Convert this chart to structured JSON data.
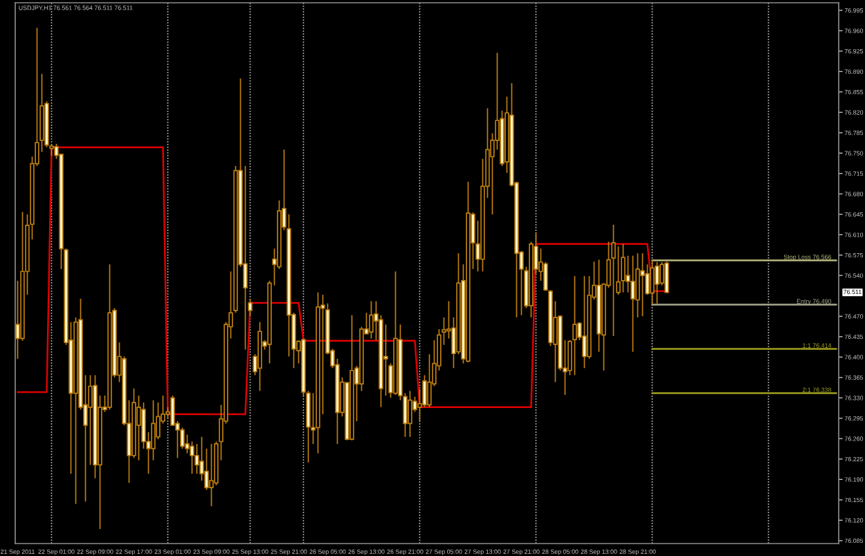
{
  "chart_data": {
    "type": "candlestick",
    "title": "USDJPY,H1 76.561 76.564 76.511 76.511",
    "categories": [
      "21 Sep 2011",
      null,
      null,
      null,
      null,
      null,
      null,
      null,
      "22 Sep 01:00",
      null,
      null,
      null,
      null,
      null,
      null,
      null,
      "22 Sep 09:00",
      null,
      null,
      null,
      null,
      null,
      null,
      null,
      "22 Sep 17:00",
      null,
      null,
      null,
      null,
      null,
      null,
      null,
      "23 Sep 01:00",
      null,
      null,
      null,
      null,
      null,
      null,
      null,
      "23 Sep 09:00",
      null,
      null,
      null,
      null,
      null,
      null,
      null,
      "25 Sep 13:00",
      null,
      null,
      null,
      null,
      null,
      null,
      null,
      "25 Sep 21:00",
      null,
      null,
      null,
      null,
      null,
      null,
      null,
      "26 Sep 05:00",
      null,
      null,
      null,
      null,
      null,
      null,
      null,
      "26 Sep 13:00",
      null,
      null,
      null,
      null,
      null,
      null,
      null,
      "26 Sep 21:00",
      null,
      null,
      null,
      null,
      null,
      null,
      null,
      "27 Sep 05:00",
      null,
      null,
      null,
      null,
      null,
      null,
      null,
      "27 Sep 13:00",
      null,
      null,
      null,
      null,
      null,
      null,
      null,
      "27 Sep 21:00",
      null,
      null,
      null,
      null,
      null,
      null,
      null,
      "28 Sep 05:00",
      null,
      null,
      null,
      null,
      null,
      null,
      null,
      "28 Sep 13:00",
      null,
      null,
      null,
      null,
      null,
      null,
      null,
      "28 Sep 21:00",
      null,
      null,
      null,
      null,
      null,
      null,
      null,
      null,
      null,
      null,
      null,
      null,
      null,
      null,
      null,
      null,
      null,
      null,
      null,
      null,
      null,
      null,
      null,
      null,
      null,
      null,
      null,
      null,
      null,
      null,
      null,
      null,
      null,
      null,
      null,
      null,
      null,
      null,
      null,
      null,
      null
    ],
    "ohlc": [
      [
        76.456,
        76.531,
        76.397,
        76.432
      ],
      [
        76.432,
        76.649,
        76.428,
        76.547
      ],
      [
        76.547,
        76.645,
        76.507,
        76.626
      ],
      [
        76.628,
        76.744,
        76.602,
        76.732
      ],
      [
        76.732,
        76.965,
        76.728,
        76.768
      ],
      [
        76.772,
        76.886,
        76.752,
        76.831
      ],
      [
        76.835,
        76.839,
        76.76,
        76.764
      ],
      [
        76.758,
        76.766,
        76.745,
        76.762
      ],
      [
        76.761,
        76.766,
        76.74,
        76.746
      ],
      [
        76.748,
        76.748,
        76.551,
        76.586
      ],
      [
        76.584,
        76.586,
        76.421,
        76.425
      ],
      [
        76.429,
        76.46,
        76.2,
        76.338
      ],
      [
        76.338,
        76.468,
        76.148,
        76.46
      ],
      [
        76.464,
        76.5,
        76.31,
        76.314
      ],
      [
        76.318,
        76.369,
        76.152,
        76.283
      ],
      [
        76.314,
        76.369,
        76.215,
        76.35
      ],
      [
        76.351,
        76.369,
        76.192,
        76.215
      ],
      [
        76.215,
        76.334,
        76.105,
        76.314
      ],
      [
        76.314,
        76.334,
        76.306,
        76.31
      ],
      [
        76.314,
        76.559,
        76.31,
        76.476
      ],
      [
        76.48,
        76.484,
        76.365,
        76.369
      ],
      [
        76.369,
        76.425,
        76.357,
        76.401
      ],
      [
        76.397,
        76.401,
        76.283,
        76.286
      ],
      [
        76.286,
        76.326,
        76.184,
        76.231
      ],
      [
        76.231,
        76.346,
        76.227,
        76.322
      ],
      [
        76.283,
        76.334,
        76.223,
        76.314
      ],
      [
        76.31,
        76.322,
        76.243,
        76.255
      ],
      [
        76.255,
        76.271,
        76.2,
        76.243
      ],
      [
        76.243,
        76.326,
        76.223,
        76.286
      ],
      [
        76.263,
        76.322,
        76.259,
        76.298
      ],
      [
        76.29,
        76.334,
        76.286,
        76.302
      ],
      [
        76.302,
        76.314,
        76.294,
        76.306
      ],
      [
        76.33,
        76.334,
        76.283,
        76.283
      ],
      [
        76.286,
        76.29,
        76.227,
        76.275
      ],
      [
        76.275,
        76.279,
        76.243,
        76.247
      ],
      [
        76.251,
        76.267,
        76.235,
        76.243
      ],
      [
        76.247,
        76.255,
        76.2,
        76.231
      ],
      [
        76.231,
        76.251,
        76.2,
        76.215
      ],
      [
        76.221,
        76.263,
        76.188,
        76.2
      ],
      [
        76.204,
        76.243,
        76.172,
        76.176
      ],
      [
        76.176,
        76.251,
        76.144,
        76.188
      ],
      [
        76.184,
        76.255,
        76.18,
        76.251
      ],
      [
        76.255,
        76.318,
        76.223,
        76.294
      ],
      [
        76.29,
        76.46,
        76.286,
        76.456
      ],
      [
        76.452,
        76.547,
        76.432,
        76.476
      ],
      [
        76.48,
        76.728,
        76.476,
        76.72
      ],
      [
        76.72,
        76.878,
        76.555,
        76.559
      ],
      [
        76.56,
        76.728,
        76.413,
        76.519
      ],
      [
        76.493,
        76.5,
        76.47,
        76.48
      ],
      [
        76.401,
        76.405,
        76.369,
        76.375
      ],
      [
        76.381,
        76.46,
        76.342,
        76.444
      ],
      [
        76.426,
        76.429,
        76.413,
        76.419
      ],
      [
        76.422,
        76.531,
        76.389,
        76.527
      ],
      [
        76.568,
        76.586,
        76.523,
        76.559
      ],
      [
        76.555,
        76.669,
        76.551,
        76.651
      ],
      [
        76.655,
        76.756,
        76.618,
        76.623
      ],
      [
        76.62,
        76.645,
        76.401,
        76.472
      ],
      [
        76.473,
        76.476,
        76.381,
        76.414
      ],
      [
        76.411,
        76.429,
        76.389,
        76.427
      ],
      [
        76.43,
        76.432,
        76.334,
        76.34
      ],
      [
        76.338,
        76.342,
        76.219,
        76.28
      ],
      [
        76.279,
        76.338,
        76.251,
        76.275
      ],
      [
        76.279,
        76.511,
        76.235,
        76.486
      ],
      [
        76.489,
        76.507,
        76.302,
        76.484
      ],
      [
        76.481,
        76.492,
        76.405,
        76.407
      ],
      [
        76.411,
        76.414,
        76.381,
        76.385
      ],
      [
        76.387,
        76.397,
        76.251,
        76.305
      ],
      [
        76.305,
        76.365,
        76.298,
        76.357
      ],
      [
        76.356,
        76.357,
        76.257,
        76.259
      ],
      [
        76.259,
        76.472,
        76.257,
        76.377
      ],
      [
        76.381,
        76.385,
        76.29,
        76.354
      ],
      [
        76.354,
        76.452,
        76.342,
        76.448
      ],
      [
        76.448,
        76.476,
        76.44,
        76.44
      ],
      [
        76.443,
        76.496,
        76.432,
        76.472
      ],
      [
        76.474,
        76.496,
        76.429,
        76.462
      ],
      [
        76.464,
        76.472,
        76.314,
        76.346
      ],
      [
        76.401,
        76.456,
        76.334,
        76.397
      ],
      [
        76.385,
        76.389,
        76.33,
        76.339
      ],
      [
        76.338,
        76.547,
        76.335,
        76.432
      ],
      [
        76.43,
        76.456,
        76.326,
        76.334
      ],
      [
        76.332,
        76.338,
        76.263,
        76.286
      ],
      [
        76.286,
        76.342,
        76.263,
        76.326
      ],
      [
        76.324,
        76.332,
        76.306,
        76.31
      ],
      [
        76.314,
        76.345,
        76.29,
        76.32
      ],
      [
        76.359,
        76.369,
        76.314,
        76.318
      ],
      [
        76.318,
        76.405,
        76.314,
        76.357
      ],
      [
        76.354,
        76.429,
        76.35,
        76.389
      ],
      [
        76.385,
        76.448,
        76.377,
        76.438
      ],
      [
        76.443,
        76.468,
        76.421,
        76.447
      ],
      [
        76.445,
        76.496,
        76.432,
        76.448
      ],
      [
        76.45,
        76.468,
        76.381,
        76.406
      ],
      [
        76.409,
        76.578,
        76.405,
        76.527
      ],
      [
        76.531,
        76.559,
        76.389,
        76.397
      ],
      [
        76.393,
        76.701,
        76.391,
        76.647
      ],
      [
        76.645,
        76.648,
        76.551,
        76.596
      ],
      [
        76.594,
        76.634,
        76.547,
        76.568
      ],
      [
        76.568,
        76.74,
        76.547,
        76.693
      ],
      [
        76.693,
        76.827,
        76.673,
        76.756
      ],
      [
        76.744,
        76.784,
        76.645,
        76.772
      ],
      [
        76.772,
        76.922,
        76.756,
        76.806
      ],
      [
        76.809,
        76.823,
        76.728,
        76.732
      ],
      [
        76.735,
        76.847,
        76.716,
        76.819
      ],
      [
        76.815,
        76.87,
        76.693,
        76.695
      ],
      [
        76.699,
        76.701,
        76.468,
        76.578
      ],
      [
        76.58,
        76.582,
        76.472,
        76.551
      ],
      [
        76.548,
        76.555,
        76.484,
        76.488
      ],
      [
        76.488,
        76.598,
        76.468,
        76.594
      ],
      [
        76.59,
        76.614,
        76.543,
        76.551
      ],
      [
        76.547,
        76.586,
        76.531,
        76.563
      ],
      [
        76.56,
        76.563,
        76.514,
        76.515
      ],
      [
        76.513,
        76.515,
        76.419,
        76.425
      ],
      [
        76.422,
        76.496,
        76.357,
        76.468
      ],
      [
        76.47,
        76.472,
        76.377,
        76.381
      ],
      [
        76.381,
        76.429,
        76.335,
        76.375
      ],
      [
        76.377,
        76.429,
        76.369,
        76.427
      ],
      [
        76.43,
        76.539,
        76.369,
        76.456
      ],
      [
        76.458,
        76.46,
        76.429,
        76.434
      ],
      [
        76.436,
        76.539,
        76.381,
        76.401
      ],
      [
        76.401,
        76.539,
        76.397,
        76.506
      ],
      [
        76.503,
        76.564,
        76.499,
        76.523
      ],
      [
        76.523,
        76.567,
        76.409,
        76.44
      ],
      [
        76.438,
        76.527,
        76.377,
        76.525
      ],
      [
        76.523,
        76.598,
        76.519,
        76.567
      ],
      [
        76.57,
        76.627,
        76.436,
        76.596
      ],
      [
        76.511,
        76.59,
        76.507,
        76.529
      ],
      [
        76.531,
        76.594,
        76.511,
        76.571
      ],
      [
        76.54,
        76.574,
        76.511,
        76.53
      ],
      [
        76.53,
        76.574,
        76.409,
        76.5
      ],
      [
        76.498,
        76.578,
        76.468,
        76.551
      ],
      [
        76.548,
        76.578,
        76.47,
        76.54
      ],
      [
        76.543,
        76.559,
        76.507,
        76.509
      ],
      [
        76.51,
        76.567,
        76.49,
        76.553
      ],
      [
        76.556,
        76.563,
        76.492,
        76.525
      ],
      [
        76.527,
        76.563,
        76.523,
        76.559
      ],
      [
        76.561,
        76.564,
        76.511,
        76.511
      ],
      null,
      null,
      null,
      null,
      null,
      null,
      null,
      null,
      null,
      null,
      null,
      null,
      null,
      null,
      null,
      null,
      null,
      null,
      null,
      null,
      null,
      null,
      null,
      null,
      null,
      null,
      null,
      null,
      null,
      null,
      null,
      null,
      null,
      null,
      null
    ],
    "color": "#c08010",
    "colors": [
      "#fff2c4",
      "#000000",
      "#000000",
      "#000000",
      "#000000",
      "#000000",
      "#fff2c4",
      "#000000",
      "#fff2c4",
      "#fff2c4",
      "#fff2c4",
      "#fff2c4",
      "#000000",
      "#fff2c4",
      "#fff2c4",
      "#000000",
      "#fff2c4",
      "#000000",
      "#fff2c4",
      "#000000",
      "#fff2c4",
      "#000000",
      "#fff2c4",
      "#fff2c4",
      "#000000",
      "#000000",
      "#fff2c4",
      "#fff2c4",
      "#000000",
      "#000000",
      "#000000",
      "#000000",
      "#fff2c4",
      "#fff2c4",
      "#fff2c4",
      "#fff2c4",
      "#fff2c4",
      "#fff2c4",
      "#fff2c4",
      "#fff2c4",
      "#000000",
      "#000000",
      "#000000",
      "#000000",
      "#000000",
      "#000000",
      "#fff2c4",
      "#fff2c4",
      "#fff2c4",
      "#fff2c4",
      "#000000",
      "#fff2c4",
      "#000000",
      "#fff2c4",
      "#000000",
      "#fff2c4",
      "#fff2c4",
      "#fff2c4",
      "#000000",
      "#fff2c4",
      "#fff2c4",
      "#fff2c4",
      "#000000",
      "#fff2c4",
      "#fff2c4",
      "#fff2c4",
      "#fff2c4",
      "#000000",
      "#fff2c4",
      "#000000",
      "#fff2c4",
      "#000000",
      "#fff2c4",
      "#000000",
      "#fff2c4",
      "#fff2c4",
      "#fff2c4",
      "#fff2c4",
      "#000000",
      "#fff2c4",
      "#fff2c4",
      "#000000",
      "#fff2c4",
      "#000000",
      "#fff2c4",
      "#000000",
      "#000000",
      "#000000",
      "#000000",
      "#000000",
      "#fff2c4",
      "#000000",
      "#fff2c4",
      "#000000",
      "#fff2c4",
      "#fff2c4",
      "#000000",
      "#000000",
      "#000000",
      "#000000",
      "#fff2c4",
      "#000000",
      "#fff2c4",
      "#fff2c4",
      "#fff2c4",
      "#fff2c4",
      "#000000",
      "#fff2c4",
      "#000000",
      "#fff2c4",
      "#fff2c4",
      "#000000",
      "#fff2c4",
      "#fff2c4",
      "#000000",
      "#000000",
      "#fff2c4",
      "#fff2c4",
      "#000000",
      "#000000",
      "#fff2c4",
      "#000000",
      "#000000",
      "#000000",
      "#000000",
      "#000000",
      "#fff2c4",
      "#fff2c4",
      "#000000",
      "#fff2c4",
      "#fff2c4",
      "#000000",
      "#fff2c4",
      "#000000",
      "#fff2c4",
      null,
      null,
      null,
      null,
      null,
      null,
      null,
      null,
      null,
      null,
      null,
      null,
      null,
      null,
      null,
      null,
      null,
      null,
      null,
      null,
      null,
      null,
      null,
      null,
      null,
      null,
      null,
      null,
      null,
      null,
      null,
      null,
      null,
      null,
      null
    ],
    "series": [
      {
        "type": "line",
        "color": "#e00000",
        "values": [
          76.34,
          76.34,
          76.34,
          76.34,
          76.34,
          76.34,
          76.34,
          76.76,
          76.76,
          76.76,
          76.76,
          76.76,
          76.76,
          76.76,
          76.76,
          76.76,
          76.76,
          76.76,
          76.76,
          76.76,
          76.76,
          76.76,
          76.76,
          76.76,
          76.76,
          76.76,
          76.76,
          76.76,
          76.76,
          76.76,
          76.76,
          76.302,
          76.302,
          76.302,
          76.302,
          76.302,
          76.302,
          76.302,
          76.302,
          76.302,
          76.302,
          76.302,
          76.302,
          76.302,
          76.302,
          76.302,
          76.302,
          76.302,
          76.493,
          76.493,
          76.493,
          76.493,
          76.493,
          76.493,
          76.493,
          76.493,
          76.493,
          76.493,
          76.493,
          76.428,
          76.428,
          76.428,
          76.428,
          76.428,
          76.428,
          76.428,
          76.428,
          76.428,
          76.428,
          76.428,
          76.428,
          76.428,
          76.428,
          76.428,
          76.428,
          76.428,
          76.428,
          76.428,
          76.428,
          76.428,
          76.428,
          76.428,
          76.428,
          76.314,
          76.314,
          76.314,
          76.314,
          76.314,
          76.314,
          76.314,
          76.314,
          76.314,
          76.314,
          76.314,
          76.314,
          76.314,
          76.314,
          76.314,
          76.314,
          76.314,
          76.314,
          76.314,
          76.314,
          76.314,
          76.314,
          76.314,
          76.314,
          76.594,
          76.594,
          76.594,
          76.594,
          76.594,
          76.594,
          76.594,
          76.594,
          76.594,
          76.594,
          76.594,
          76.594,
          76.594,
          76.594,
          76.594,
          76.594,
          76.594,
          76.594,
          76.594,
          76.594,
          76.594,
          76.594,
          76.594,
          76.594,
          76.513,
          76.513,
          76.513,
          76.513,
          null,
          null,
          null,
          null,
          null,
          null,
          null,
          null,
          null,
          null,
          null,
          null,
          null,
          null,
          null,
          null,
          null,
          null,
          null,
          null,
          null,
          null,
          null,
          null,
          null,
          null,
          null,
          null,
          null,
          null,
          null,
          null,
          null,
          null,
          null
        ]
      },
      {
        "type": "line",
        "name": "Stop Loss 76.566",
        "color": "#b8b880",
        "values": [
          null,
          null,
          null,
          null,
          null,
          null,
          null,
          null,
          null,
          null,
          null,
          null,
          null,
          null,
          null,
          null,
          null,
          null,
          null,
          null,
          null,
          null,
          null,
          null,
          null,
          null,
          null,
          null,
          null,
          null,
          null,
          null,
          null,
          null,
          null,
          null,
          null,
          null,
          null,
          null,
          null,
          null,
          null,
          null,
          null,
          null,
          null,
          null,
          null,
          null,
          null,
          null,
          null,
          null,
          null,
          null,
          null,
          null,
          null,
          null,
          null,
          null,
          null,
          null,
          null,
          null,
          null,
          null,
          null,
          null,
          null,
          null,
          null,
          null,
          null,
          null,
          null,
          null,
          null,
          null,
          null,
          null,
          null,
          null,
          null,
          null,
          null,
          null,
          null,
          null,
          null,
          null,
          null,
          null,
          null,
          null,
          null,
          null,
          null,
          null,
          null,
          null,
          null,
          null,
          null,
          null,
          null,
          null,
          null,
          null,
          null,
          null,
          null,
          null,
          null,
          null,
          null,
          null,
          null,
          null,
          null,
          null,
          null,
          null,
          null,
          null,
          null,
          null,
          null,
          null,
          null,
          76.566,
          76.566,
          76.566,
          76.566,
          76.566,
          76.566,
          76.566,
          76.566,
          76.566,
          76.566,
          76.566,
          76.566,
          76.566,
          76.566,
          76.566,
          76.566,
          76.566,
          76.566,
          76.566,
          76.566,
          76.566,
          76.566,
          76.566,
          76.566,
          76.566,
          76.566,
          76.566,
          76.566,
          76.566,
          76.566,
          76.566,
          76.566,
          76.566,
          76.566,
          76.566,
          76.566,
          76.566,
          76.566,
          76.566
        ]
      },
      {
        "type": "line",
        "name": "Entry 76.490",
        "color": "#a8a890",
        "values": [
          null,
          null,
          null,
          null,
          null,
          null,
          null,
          null,
          null,
          null,
          null,
          null,
          null,
          null,
          null,
          null,
          null,
          null,
          null,
          null,
          null,
          null,
          null,
          null,
          null,
          null,
          null,
          null,
          null,
          null,
          null,
          null,
          null,
          null,
          null,
          null,
          null,
          null,
          null,
          null,
          null,
          null,
          null,
          null,
          null,
          null,
          null,
          null,
          null,
          null,
          null,
          null,
          null,
          null,
          null,
          null,
          null,
          null,
          null,
          null,
          null,
          null,
          null,
          null,
          null,
          null,
          null,
          null,
          null,
          null,
          null,
          null,
          null,
          null,
          null,
          null,
          null,
          null,
          null,
          null,
          null,
          null,
          null,
          null,
          null,
          null,
          null,
          null,
          null,
          null,
          null,
          null,
          null,
          null,
          null,
          null,
          null,
          null,
          null,
          null,
          null,
          null,
          null,
          null,
          null,
          null,
          null,
          null,
          null,
          null,
          null,
          null,
          null,
          null,
          null,
          null,
          null,
          null,
          null,
          null,
          null,
          null,
          null,
          null,
          null,
          null,
          null,
          null,
          null,
          null,
          null,
          76.49,
          76.49,
          76.49,
          76.49,
          76.49,
          76.49,
          76.49,
          76.49,
          76.49,
          76.49,
          76.49,
          76.49,
          76.49,
          76.49,
          76.49,
          76.49,
          76.49,
          76.49,
          76.49,
          76.49,
          76.49,
          76.49,
          76.49,
          76.49,
          76.49,
          76.49,
          76.49,
          76.49,
          76.49,
          76.49,
          76.49,
          76.49,
          76.49,
          76.49,
          76.49,
          76.49,
          76.49,
          76.49,
          76.49
        ]
      },
      {
        "type": "line",
        "name": "1:1 76.414",
        "color": "#a0a020",
        "values": [
          null,
          null,
          null,
          null,
          null,
          null,
          null,
          null,
          null,
          null,
          null,
          null,
          null,
          null,
          null,
          null,
          null,
          null,
          null,
          null,
          null,
          null,
          null,
          null,
          null,
          null,
          null,
          null,
          null,
          null,
          null,
          null,
          null,
          null,
          null,
          null,
          null,
          null,
          null,
          null,
          null,
          null,
          null,
          null,
          null,
          null,
          null,
          null,
          null,
          null,
          null,
          null,
          null,
          null,
          null,
          null,
          null,
          null,
          null,
          null,
          null,
          null,
          null,
          null,
          null,
          null,
          null,
          null,
          null,
          null,
          null,
          null,
          null,
          null,
          null,
          null,
          null,
          null,
          null,
          null,
          null,
          null,
          null,
          null,
          null,
          null,
          null,
          null,
          null,
          null,
          null,
          null,
          null,
          null,
          null,
          null,
          null,
          null,
          null,
          null,
          null,
          null,
          null,
          null,
          null,
          null,
          null,
          null,
          null,
          null,
          null,
          null,
          null,
          null,
          null,
          null,
          null,
          null,
          null,
          null,
          null,
          null,
          null,
          null,
          null,
          null,
          null,
          null,
          null,
          null,
          null,
          76.414,
          76.414,
          76.414,
          76.414,
          76.414,
          76.414,
          76.414,
          76.414,
          76.414,
          76.414,
          76.414,
          76.414,
          76.414,
          76.414,
          76.414,
          76.414,
          76.414,
          76.414,
          76.414,
          76.414,
          76.414,
          76.414,
          76.414,
          76.414,
          76.414,
          76.414,
          76.414,
          76.414,
          76.414,
          76.414,
          76.414,
          76.414,
          76.414,
          76.414,
          76.414,
          76.414,
          76.414,
          76.414,
          76.414
        ]
      },
      {
        "type": "line",
        "name": "2:1 76.338",
        "color": "#a0a020",
        "values": [
          null,
          null,
          null,
          null,
          null,
          null,
          null,
          null,
          null,
          null,
          null,
          null,
          null,
          null,
          null,
          null,
          null,
          null,
          null,
          null,
          null,
          null,
          null,
          null,
          null,
          null,
          null,
          null,
          null,
          null,
          null,
          null,
          null,
          null,
          null,
          null,
          null,
          null,
          null,
          null,
          null,
          null,
          null,
          null,
          null,
          null,
          null,
          null,
          null,
          null,
          null,
          null,
          null,
          null,
          null,
          null,
          null,
          null,
          null,
          null,
          null,
          null,
          null,
          null,
          null,
          null,
          null,
          null,
          null,
          null,
          null,
          null,
          null,
          null,
          null,
          null,
          null,
          null,
          null,
          null,
          null,
          null,
          null,
          null,
          null,
          null,
          null,
          null,
          null,
          null,
          null,
          null,
          null,
          null,
          null,
          null,
          null,
          null,
          null,
          null,
          null,
          null,
          null,
          null,
          null,
          null,
          null,
          null,
          null,
          null,
          null,
          null,
          null,
          null,
          null,
          null,
          null,
          null,
          null,
          null,
          null,
          null,
          null,
          null,
          null,
          null,
          null,
          null,
          null,
          null,
          null,
          76.338,
          76.338,
          76.338,
          76.338,
          76.338,
          76.338,
          76.338,
          76.338,
          76.338,
          76.338,
          76.338,
          76.338,
          76.338,
          76.338,
          76.338,
          76.338,
          76.338,
          76.338,
          76.338,
          76.338,
          76.338,
          76.338,
          76.338,
          76.338,
          76.338,
          76.338,
          76.338,
          76.338,
          76.338,
          76.338,
          76.338,
          76.338,
          76.338,
          76.338,
          76.338,
          76.338,
          76.338,
          76.338,
          76.338
        ]
      }
    ],
    "ylim": [
      76.08,
      77.008
    ],
    "yticks": [
      76.085,
      {
        "value": 76.12,
        "label": "76.120"
      },
      76.155,
      {
        "value": 76.19,
        "label": "76.190"
      },
      76.225,
      {
        "value": 76.26,
        "label": "76.260"
      },
      76.295,
      {
        "value": 76.33,
        "label": "76.330"
      },
      76.365,
      {
        "value": 76.4,
        "label": "76.400"
      },
      76.435,
      {
        "value": 76.47,
        "label": "76.470"
      },
      {
        "value": 76.54,
        "label": "76.540"
      },
      76.575,
      {
        "value": 76.61,
        "label": "76.610"
      },
      76.645,
      {
        "value": 76.68,
        "label": "76.680"
      },
      76.715,
      {
        "value": 76.75,
        "label": "76.750"
      },
      76.785,
      {
        "value": 76.82,
        "label": "76.820"
      },
      76.855,
      {
        "value": 76.89,
        "label": "76.890"
      },
      76.925,
      {
        "value": 76.96,
        "label": "76.960"
      },
      76.995
    ],
    "annotations": [
      {
        "text": "76.511",
        "y": 76.511
      }
    ],
    "grid": false
  }
}
